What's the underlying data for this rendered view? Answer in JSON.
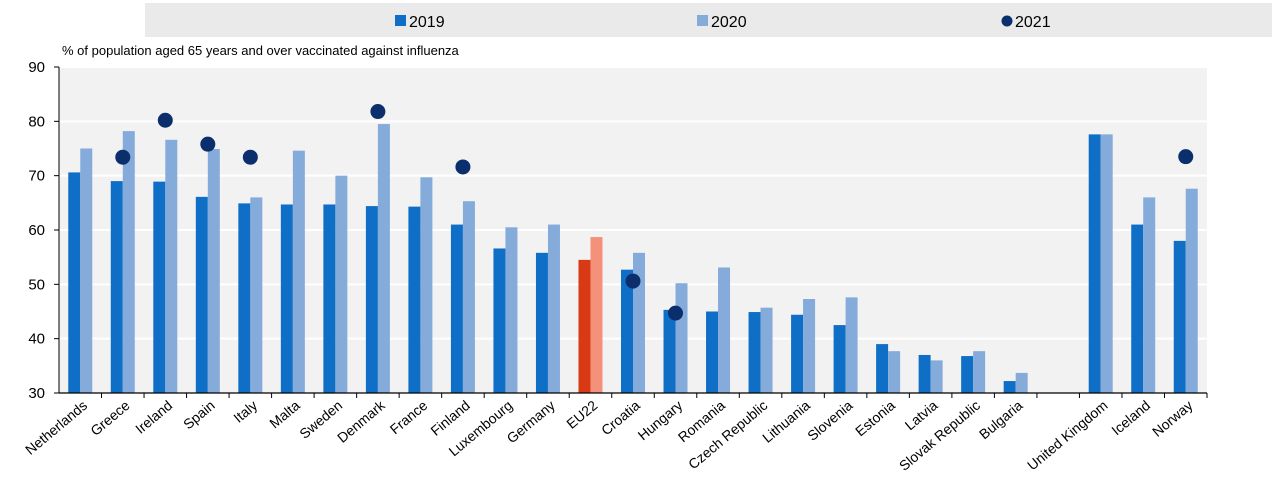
{
  "chart_data": {
    "type": "bar",
    "ylabel": "% of population aged 65 years and over vaccinated against influenza",
    "ylim": [
      30,
      90
    ],
    "yticks": [
      30,
      40,
      50,
      60,
      70,
      80,
      90
    ],
    "grid": true,
    "legend_position": "top",
    "categories": [
      "Netherlands",
      "Greece",
      "Ireland",
      "Spain",
      "Italy",
      "Malta",
      "Sweden",
      "Denmark",
      "France",
      "Finland",
      "Luxembourg",
      "Germany",
      "EU22",
      "Croatia",
      "Hungary",
      "Romania",
      "Czech Republic",
      "Lithuania",
      "Slovenia",
      "Estonia",
      "Latvia",
      "Slovak Republic",
      "Bulgaria",
      "",
      "United Kingdom",
      "Iceland",
      "Norway"
    ],
    "series": [
      {
        "name": "2019",
        "kind": "bar",
        "color": "#0f6fc6",
        "highlight_color": "#d93a16",
        "values": [
          70.6,
          69.0,
          68.9,
          66.1,
          64.9,
          64.7,
          64.7,
          64.4,
          64.3,
          61.0,
          56.6,
          55.8,
          54.5,
          52.7,
          45.3,
          45.0,
          44.9,
          44.4,
          42.5,
          39.0,
          37.0,
          36.8,
          32.2,
          null,
          77.6,
          61.0,
          58.0
        ]
      },
      {
        "name": "2020",
        "kind": "bar",
        "color": "#85abdb",
        "highlight_color": "#f5907a",
        "values": [
          75.0,
          78.2,
          76.6,
          74.9,
          66.0,
          74.6,
          70.0,
          79.5,
          69.7,
          65.3,
          60.5,
          61.0,
          58.7,
          55.8,
          50.2,
          53.1,
          45.7,
          47.3,
          47.6,
          37.7,
          36.0,
          37.7,
          33.7,
          null,
          77.6,
          66.0,
          67.6
        ]
      },
      {
        "name": "2021",
        "kind": "dot",
        "color": "#0b2f6c",
        "values": [
          null,
          73.4,
          80.2,
          75.8,
          73.4,
          null,
          null,
          81.8,
          null,
          71.6,
          null,
          null,
          null,
          50.6,
          44.7,
          null,
          null,
          null,
          null,
          null,
          null,
          null,
          null,
          null,
          null,
          null,
          73.5
        ]
      }
    ],
    "highlight_category": "EU22"
  }
}
